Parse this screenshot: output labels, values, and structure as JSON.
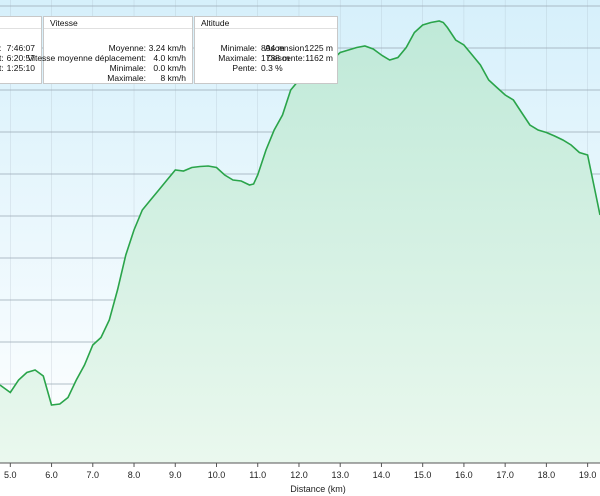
{
  "colors": {
    "line": "#2aa44a",
    "fill_top": "#bfe9d8",
    "fill_bottom": "#eaf8ee",
    "sky_top": "#d6f0fb",
    "sky_bottom": "#ffffff",
    "grid": "#9aa8b4"
  },
  "stats": {
    "time": {
      "rows": [
        {
          "value": "7:46:07"
        },
        {
          "value": "6:20:57"
        },
        {
          "value": "1:25:10"
        }
      ]
    },
    "vitesse": {
      "title": "Vitesse",
      "rows": [
        {
          "label": "Moyenne:",
          "value": "3.24 km/h"
        },
        {
          "label": "Vitesse moyenne déplacement:",
          "value": "4.0 km/h"
        },
        {
          "label": "Minimale:",
          "value": "0.0 km/h"
        },
        {
          "label": "Maximale:",
          "value": "8 km/h"
        }
      ]
    },
    "altitude": {
      "title": "Altitude",
      "rows": [
        {
          "label": "Minimale:",
          "value": "894 m",
          "label2": "Ascension:",
          "value2": "1225 m"
        },
        {
          "label": "Maximale:",
          "value": "1738 m",
          "label2": "Descente:",
          "value2": "1162 m"
        },
        {
          "label": "Pente:",
          "value": "0.3 %"
        }
      ]
    }
  },
  "chart_data": {
    "type": "area",
    "xlabel": "Distance  (km)",
    "ylabel": "",
    "xlim": [
      4.75,
      19.3
    ],
    "ylim": [
      894,
      1780
    ],
    "x_ticks": [
      "5.0",
      "6.0",
      "7.0",
      "8.0",
      "9.0",
      "10.0",
      "11.0",
      "12.0",
      "13.0",
      "14.0",
      "15.0",
      "16.0",
      "17.0",
      "18.0",
      "19.0"
    ],
    "grid": true,
    "series": [
      {
        "x": [
          4.75,
          5.0,
          5.2,
          5.4,
          5.6,
          5.8,
          6.0,
          6.2,
          6.4,
          6.6,
          6.8,
          7.0,
          7.2,
          7.4,
          7.6,
          7.8,
          8.0,
          8.2,
          8.4,
          8.6,
          8.8,
          9.0,
          9.2,
          9.4,
          9.6,
          9.8,
          10.0,
          10.2,
          10.4,
          10.6,
          10.8,
          10.9,
          11.0,
          11.2,
          11.4,
          11.6,
          11.8,
          12.0,
          12.2,
          12.4,
          12.6,
          12.8,
          13.0,
          13.2,
          13.4,
          13.6,
          13.8,
          14.0,
          14.2,
          14.4,
          14.6,
          14.8,
          15.0,
          15.2,
          15.4,
          15.5,
          15.6,
          15.8,
          16.0,
          16.2,
          16.4,
          16.6,
          16.8,
          17.0,
          17.2,
          17.4,
          17.6,
          17.8,
          18.0,
          18.2,
          18.4,
          18.6,
          18.8,
          19.0,
          19.2,
          19.3
        ],
        "y": [
          1050,
          1035,
          1060,
          1075,
          1080,
          1068,
          1010,
          1012,
          1025,
          1060,
          1090,
          1130,
          1145,
          1180,
          1240,
          1310,
          1360,
          1400,
          1420,
          1440,
          1460,
          1480,
          1478,
          1485,
          1487,
          1488,
          1485,
          1470,
          1460,
          1458,
          1450,
          1452,
          1470,
          1520,
          1560,
          1590,
          1640,
          1660,
          1665,
          1680,
          1690,
          1700,
          1715,
          1720,
          1725,
          1728,
          1722,
          1710,
          1700,
          1705,
          1725,
          1755,
          1770,
          1775,
          1778,
          1775,
          1765,
          1740,
          1730,
          1710,
          1690,
          1660,
          1645,
          1630,
          1620,
          1595,
          1570,
          1560,
          1555,
          1548,
          1540,
          1530,
          1515,
          1510,
          1430,
          1390
        ]
      }
    ]
  }
}
